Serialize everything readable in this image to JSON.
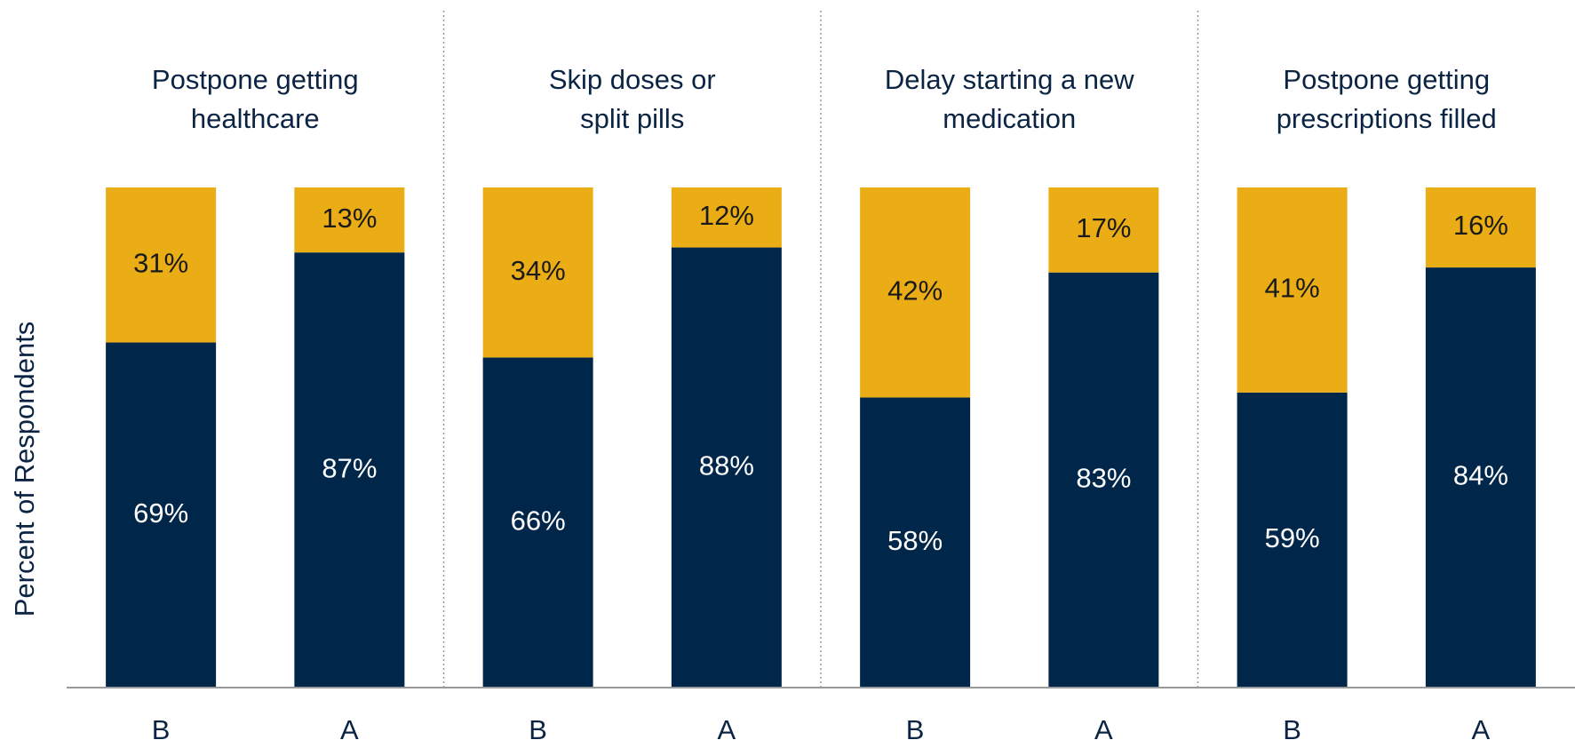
{
  "chart_data": {
    "type": "bar",
    "stacked": true,
    "y_label": "Percent of Respondents",
    "groups": [
      "Postpone getting\nhealthcare",
      "Skip doses or\nsplit pills",
      "Delay starting a new\nmedication",
      "Postpone getting\nprescriptions filled"
    ],
    "categories": [
      "B",
      "A",
      "B",
      "A",
      "B",
      "A",
      "B",
      "A"
    ],
    "ylim": [
      0,
      100
    ],
    "series": [
      {
        "color": "#00264a",
        "values": [
          69,
          87,
          66,
          88,
          58,
          83,
          59,
          84
        ],
        "value_labels": [
          "69%",
          "87%",
          "66%",
          "88%",
          "58%",
          "83%",
          "59%",
          "84%"
        ]
      },
      {
        "color": "#ebad15",
        "values": [
          31,
          13,
          34,
          12,
          42,
          17,
          41,
          16
        ],
        "value_labels": [
          "31%",
          "13%",
          "34%",
          "12%",
          "42%",
          "17%",
          "41%",
          "16%"
        ]
      }
    ]
  }
}
